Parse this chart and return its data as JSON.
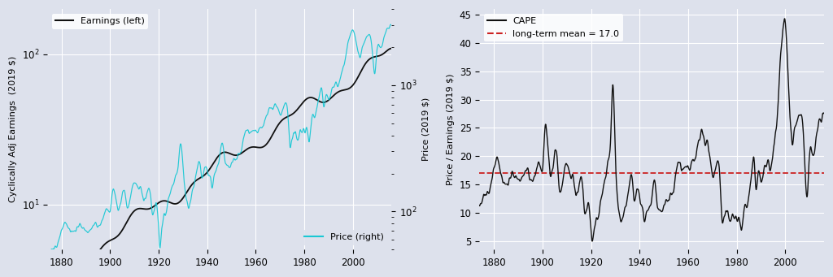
{
  "bg_color": "#dde1ec",
  "fig_bg_color": "#dde1ec",
  "earnings_color": "#111111",
  "price_color": "#1ac8d4",
  "cape_color": "#111111",
  "mean_color": "#cc2222",
  "long_term_mean": 17.0,
  "left_ylabel": "Cyclically Adj Earnings  (2019 $)",
  "right_ylabel": "Price (2019 $)",
  "right2_ylabel": "Price / Earnings (2019 $)",
  "legend1_earnings": "Earnings (left)",
  "legend1_price": "Price (right)",
  "legend2_cape": "CAPE",
  "legend2_mean": "long-term mean = 17.0",
  "xlim_left": [
    1874,
    2016
  ],
  "xlim_right": [
    1874,
    2016
  ],
  "ylim_earnings": [
    5,
    200
  ],
  "ylim_price": [
    50,
    4000
  ],
  "ylim_cape": [
    3.5,
    46
  ],
  "yticks_cape": [
    5,
    10,
    15,
    20,
    25,
    30,
    35,
    40,
    45
  ],
  "xticks": [
    1880,
    1900,
    1920,
    1940,
    1960,
    1980,
    2000
  ]
}
